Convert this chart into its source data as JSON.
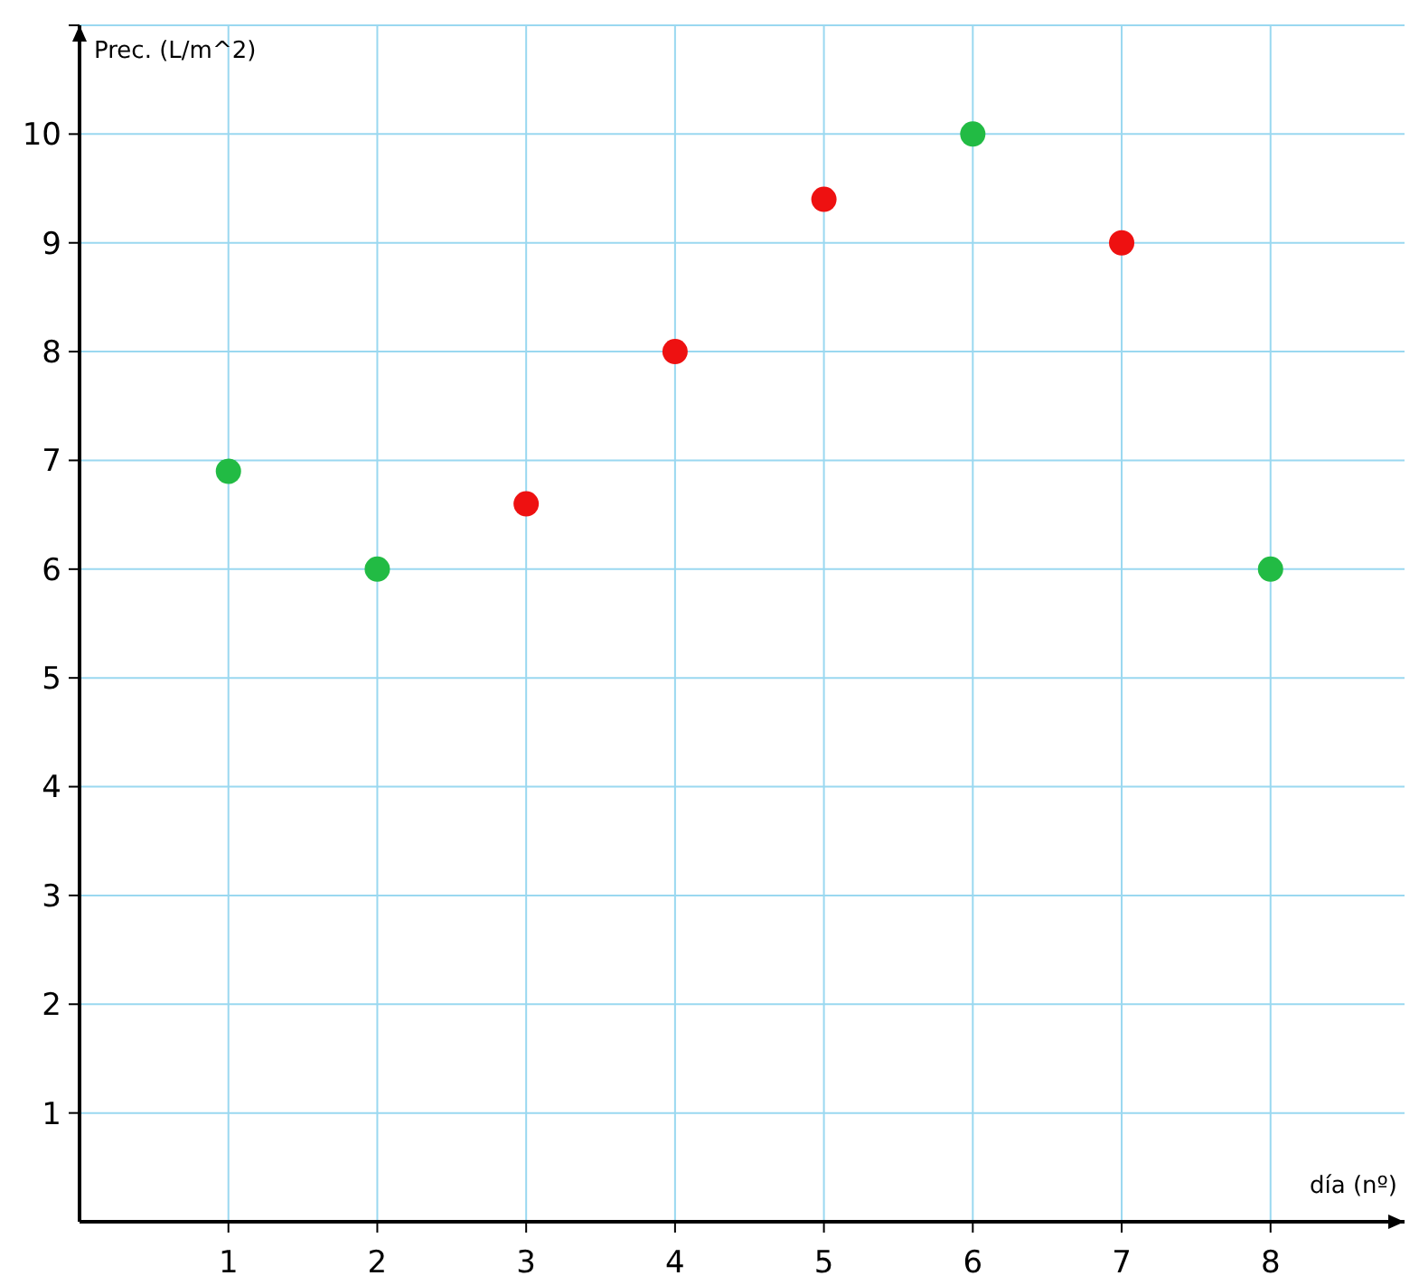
{
  "chart_data": {
    "type": "scatter",
    "xlabel": "día (nº)",
    "ylabel": "Prec. (L/m^2)",
    "series": [
      {
        "color": "#22bb44",
        "x": [
          1,
          2,
          6,
          8
        ],
        "values": [
          6.9,
          6,
          10,
          6
        ]
      },
      {
        "color": "#ee1111",
        "x": [
          3,
          4,
          5,
          7
        ],
        "values": [
          6.6,
          8,
          9.4,
          9
        ]
      }
    ],
    "xlim": [
      0,
      8.9
    ],
    "xticks": [
      1,
      2,
      3,
      4,
      5,
      6,
      7,
      8
    ],
    "ylim": [
      0,
      11
    ],
    "yticks": [
      1,
      2,
      3,
      4,
      5,
      6,
      7,
      8,
      9,
      10,
      {
        "value": 11,
        "label": null
      }
    ],
    "grid": true,
    "marker": "circle"
  }
}
